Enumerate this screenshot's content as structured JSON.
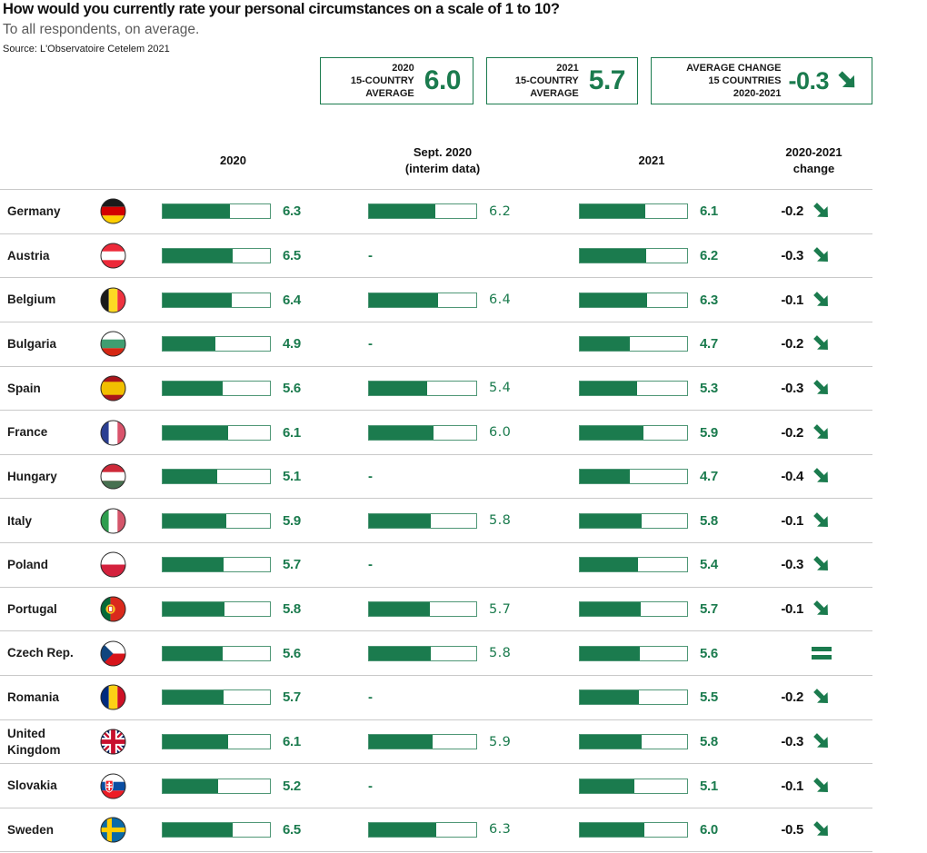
{
  "header": {
    "title": "How would you currently rate your personal circumstances on a scale of 1 to 10?",
    "subtitle": "To all respondents, on average.",
    "source": "Source: L'Observatoire Cetelem 2021"
  },
  "summary_boxes": [
    {
      "label_lines": [
        "2020",
        "15-COUNTRY",
        "AVERAGE"
      ],
      "value": "6.0",
      "has_arrow": false
    },
    {
      "label_lines": [
        "2021",
        "15-COUNTRY",
        "AVERAGE"
      ],
      "value": "5.7",
      "has_arrow": false
    },
    {
      "label_lines": [
        "AVERAGE CHANGE",
        "15 COUNTRIES",
        "2020-2021"
      ],
      "value": "-0.3",
      "has_arrow": true
    }
  ],
  "col_headers": [
    {
      "lines": [
        "2020"
      ]
    },
    {
      "lines": [
        "Sept. 2020",
        "(interim data)"
      ]
    },
    {
      "lines": [
        "2021"
      ]
    },
    {
      "lines": [
        "2020-2021",
        "change"
      ]
    }
  ],
  "missing_marker": "-",
  "colors": {
    "accent_green": "#1b7b4e",
    "bar_border_green": "#4f9776",
    "divider_gray": "#c9c9c9",
    "change_text": "#101010"
  },
  "rows": [
    {
      "country": "Germany",
      "flag": "de",
      "y2020": "6.3",
      "sept2020": "6.2",
      "y2021": "6.1",
      "change": "-0.2",
      "trend": "down"
    },
    {
      "country": "Austria",
      "flag": "at",
      "y2020": "6.5",
      "sept2020": null,
      "y2021": "6.2",
      "change": "-0.3",
      "trend": "down"
    },
    {
      "country": "Belgium",
      "flag": "be",
      "y2020": "6.4",
      "sept2020": "6.4",
      "y2021": "6.3",
      "change": "-0.1",
      "trend": "down"
    },
    {
      "country": "Bulgaria",
      "flag": "bg",
      "y2020": "4.9",
      "sept2020": null,
      "y2021": "4.7",
      "change": "-0.2",
      "trend": "down"
    },
    {
      "country": "Spain",
      "flag": "es",
      "y2020": "5.6",
      "sept2020": "5.4",
      "y2021": "5.3",
      "change": "-0.3",
      "trend": "down"
    },
    {
      "country": "France",
      "flag": "fr",
      "y2020": "6.1",
      "sept2020": "6.0",
      "y2021": "5.9",
      "change": "-0.2",
      "trend": "down"
    },
    {
      "country": "Hungary",
      "flag": "hu",
      "y2020": "5.1",
      "sept2020": null,
      "y2021": "4.7",
      "change": "-0.4",
      "trend": "down"
    },
    {
      "country": "Italy",
      "flag": "it",
      "y2020": "5.9",
      "sept2020": "5.8",
      "y2021": "5.8",
      "change": "-0.1",
      "trend": "down"
    },
    {
      "country": "Poland",
      "flag": "pl",
      "y2020": "5.7",
      "sept2020": null,
      "y2021": "5.4",
      "change": "-0.3",
      "trend": "down"
    },
    {
      "country": "Portugal",
      "flag": "pt",
      "y2020": "5.8",
      "sept2020": "5.7",
      "y2021": "5.7",
      "change": "-0.1",
      "trend": "down"
    },
    {
      "country": "Czech Rep.",
      "flag": "cz",
      "y2020": "5.6",
      "sept2020": "5.8",
      "y2021": "5.6",
      "change": null,
      "trend": "equal"
    },
    {
      "country": "Romania",
      "flag": "ro",
      "y2020": "5.7",
      "sept2020": null,
      "y2021": "5.5",
      "change": "-0.2",
      "trend": "down"
    },
    {
      "country": "United Kingdom",
      "flag": "gb",
      "y2020": "6.1",
      "sept2020": "5.9",
      "y2021": "5.8",
      "change": "-0.3",
      "trend": "down"
    },
    {
      "country": "Slovakia",
      "flag": "sk",
      "y2020": "5.2",
      "sept2020": null,
      "y2021": "5.1",
      "change": "-0.1",
      "trend": "down"
    },
    {
      "country": "Sweden",
      "flag": "se",
      "y2020": "6.5",
      "sept2020": "6.3",
      "y2021": "6.0",
      "change": "-0.5",
      "trend": "down"
    }
  ],
  "chart_data": {
    "type": "bar",
    "title": "How would you currently rate your personal circumstances on a scale of 1 to 10?",
    "subtitle": "To all respondents, on average.",
    "source": "Source: L'Observatoire Cetelem 2021",
    "scale": [
      0,
      10
    ],
    "categories": [
      "Germany",
      "Austria",
      "Belgium",
      "Bulgaria",
      "Spain",
      "France",
      "Hungary",
      "Italy",
      "Poland",
      "Portugal",
      "Czech Rep.",
      "Romania",
      "United Kingdom",
      "Slovakia",
      "Sweden"
    ],
    "series": [
      {
        "name": "2020",
        "values": [
          6.3,
          6.5,
          6.4,
          4.9,
          5.6,
          6.1,
          5.1,
          5.9,
          5.7,
          5.8,
          5.6,
          5.7,
          6.1,
          5.2,
          6.5
        ]
      },
      {
        "name": "Sept. 2020 (interim data)",
        "values": [
          6.2,
          null,
          6.4,
          null,
          5.4,
          6.0,
          null,
          5.8,
          null,
          5.7,
          5.8,
          null,
          5.9,
          null,
          6.3
        ]
      },
      {
        "name": "2021",
        "values": [
          6.1,
          6.2,
          6.3,
          4.7,
          5.3,
          5.9,
          4.7,
          5.8,
          5.4,
          5.7,
          5.6,
          5.5,
          5.8,
          5.1,
          6.0
        ]
      },
      {
        "name": "2020-2021 change",
        "values": [
          -0.2,
          -0.3,
          -0.1,
          -0.2,
          -0.3,
          -0.2,
          -0.4,
          -0.1,
          -0.3,
          -0.1,
          0.0,
          -0.2,
          -0.3,
          -0.1,
          -0.5
        ]
      }
    ],
    "aggregates": {
      "avg_2020_15_countries": 6.0,
      "avg_2021_15_countries": 5.7,
      "avg_change_2020_2021": -0.3
    },
    "legend_position": "top-columns",
    "grid": false
  }
}
